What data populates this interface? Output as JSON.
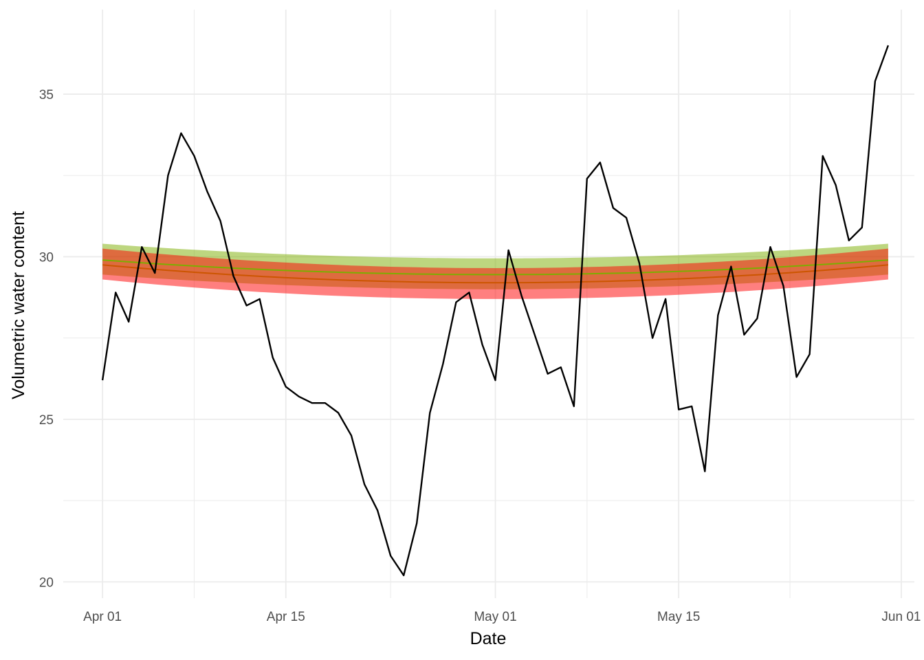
{
  "chart_data": {
    "type": "line",
    "xlabel": "Date",
    "ylabel": "Volumetric water content",
    "x_range": [
      "2020-03-29",
      "2020-06-02"
    ],
    "ylim": [
      19.5,
      37.6
    ],
    "grid": true,
    "legend": "none",
    "x_ticks": [
      {
        "date": "2020-04-01",
        "label": "Apr 01"
      },
      {
        "date": "2020-04-15",
        "label": "Apr 15"
      },
      {
        "date": "2020-05-01",
        "label": "May 01"
      },
      {
        "date": "2020-05-15",
        "label": "May 15"
      },
      {
        "date": "2020-06-01",
        "label": "Jun 01"
      }
    ],
    "y_ticks": [
      {
        "value": 20,
        "label": "20"
      },
      {
        "value": 25,
        "label": "25"
      },
      {
        "value": 30,
        "label": "30"
      },
      {
        "value": 35,
        "label": "35"
      }
    ],
    "observed": {
      "color": "#000000",
      "x": [
        "2020-04-01",
        "2020-04-02",
        "2020-04-03",
        "2020-04-04",
        "2020-04-05",
        "2020-04-06",
        "2020-04-07",
        "2020-04-08",
        "2020-04-09",
        "2020-04-10",
        "2020-04-11",
        "2020-04-12",
        "2020-04-13",
        "2020-04-14",
        "2020-04-15",
        "2020-04-16",
        "2020-04-17",
        "2020-04-18",
        "2020-04-19",
        "2020-04-20",
        "2020-04-21",
        "2020-04-22",
        "2020-04-23",
        "2020-04-24",
        "2020-04-25",
        "2020-04-26",
        "2020-04-27",
        "2020-04-28",
        "2020-04-29",
        "2020-04-30",
        "2020-05-01",
        "2020-05-02",
        "2020-05-03",
        "2020-05-04",
        "2020-05-05",
        "2020-05-06",
        "2020-05-07",
        "2020-05-08",
        "2020-05-09",
        "2020-05-10",
        "2020-05-11",
        "2020-05-12",
        "2020-05-13",
        "2020-05-14",
        "2020-05-15",
        "2020-05-16",
        "2020-05-17",
        "2020-05-18",
        "2020-05-19",
        "2020-05-20",
        "2020-05-21",
        "2020-05-22",
        "2020-05-23",
        "2020-05-24",
        "2020-05-25",
        "2020-05-26",
        "2020-05-27",
        "2020-05-28",
        "2020-05-29",
        "2020-05-30",
        "2020-05-31"
      ],
      "y": [
        26.2,
        28.9,
        28.0,
        30.3,
        29.5,
        32.5,
        33.8,
        33.1,
        32.0,
        31.1,
        29.4,
        28.5,
        28.7,
        26.9,
        26.0,
        25.7,
        25.5,
        25.5,
        25.2,
        24.5,
        23.0,
        22.2,
        20.8,
        20.2,
        21.8,
        25.2,
        26.7,
        28.6,
        28.9,
        27.3,
        26.2,
        30.2,
        28.8,
        27.6,
        26.4,
        26.6,
        25.4,
        32.4,
        32.9,
        31.5,
        31.2,
        29.8,
        27.5,
        28.7,
        25.3,
        25.4,
        23.4,
        28.2,
        29.7,
        27.6,
        28.1,
        30.3,
        29.1,
        26.3,
        27.0,
        33.1,
        32.2,
        30.5,
        30.9,
        35.4,
        36.5
      ]
    },
    "fits": [
      {
        "color": "#7cae00",
        "band_color": "#7cae00",
        "start": "2020-04-01",
        "end": "2020-05-31",
        "mid_date": "2020-05-01",
        "fit_at_ends": 29.9,
        "fit_at_mid": 29.45,
        "lower_at_ends": 29.45,
        "lower_at_mid": 29.0,
        "upper_at_ends": 30.4,
        "upper_at_mid": 29.95
      },
      {
        "color": "#cc5500",
        "band_color": "#ff0000",
        "start": "2020-04-01",
        "end": "2020-05-31",
        "mid_date": "2020-05-01",
        "fit_at_ends": 29.75,
        "fit_at_mid": 29.2,
        "lower_at_ends": 29.3,
        "lower_at_mid": 28.7,
        "upper_at_ends": 30.25,
        "upper_at_mid": 29.65
      }
    ]
  }
}
